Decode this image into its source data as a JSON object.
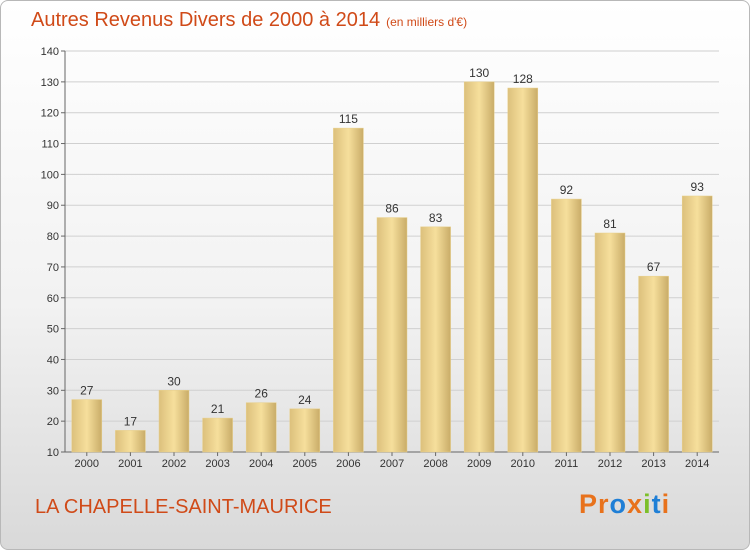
{
  "title": {
    "main": "Autres Revenus Divers de 2000 à 2014",
    "unit": "(en milliers d'€)"
  },
  "commune": "LA CHAPELLE-SAINT-MAURICE",
  "logo": {
    "text": "Proxiti",
    "letters": [
      "P",
      "r",
      "o",
      "x",
      "i",
      "t",
      "i"
    ]
  },
  "colors": {
    "title": "#d04a18",
    "bar_light": "#f6df9c",
    "bar_dark": "#c9ac68",
    "grid": "#d0d0d0",
    "logo": [
      "#e8721c",
      "#e8721c",
      "#1f7fd6",
      "#e8721c",
      "#7cbf2a",
      "#1f7fd6",
      "#e8721c"
    ]
  },
  "chart_data": {
    "type": "bar",
    "categories": [
      "2000",
      "2001",
      "2002",
      "2003",
      "2004",
      "2005",
      "2006",
      "2007",
      "2008",
      "2009",
      "2010",
      "2011",
      "2012",
      "2013",
      "2014"
    ],
    "values": [
      27,
      17,
      30,
      21,
      26,
      24,
      115,
      86,
      83,
      130,
      128,
      92,
      81,
      67,
      93
    ],
    "yticks": [
      10,
      20,
      30,
      40,
      50,
      60,
      70,
      80,
      90,
      100,
      110,
      120,
      130,
      140
    ],
    "ylim": [
      10,
      140
    ],
    "grid": true
  }
}
